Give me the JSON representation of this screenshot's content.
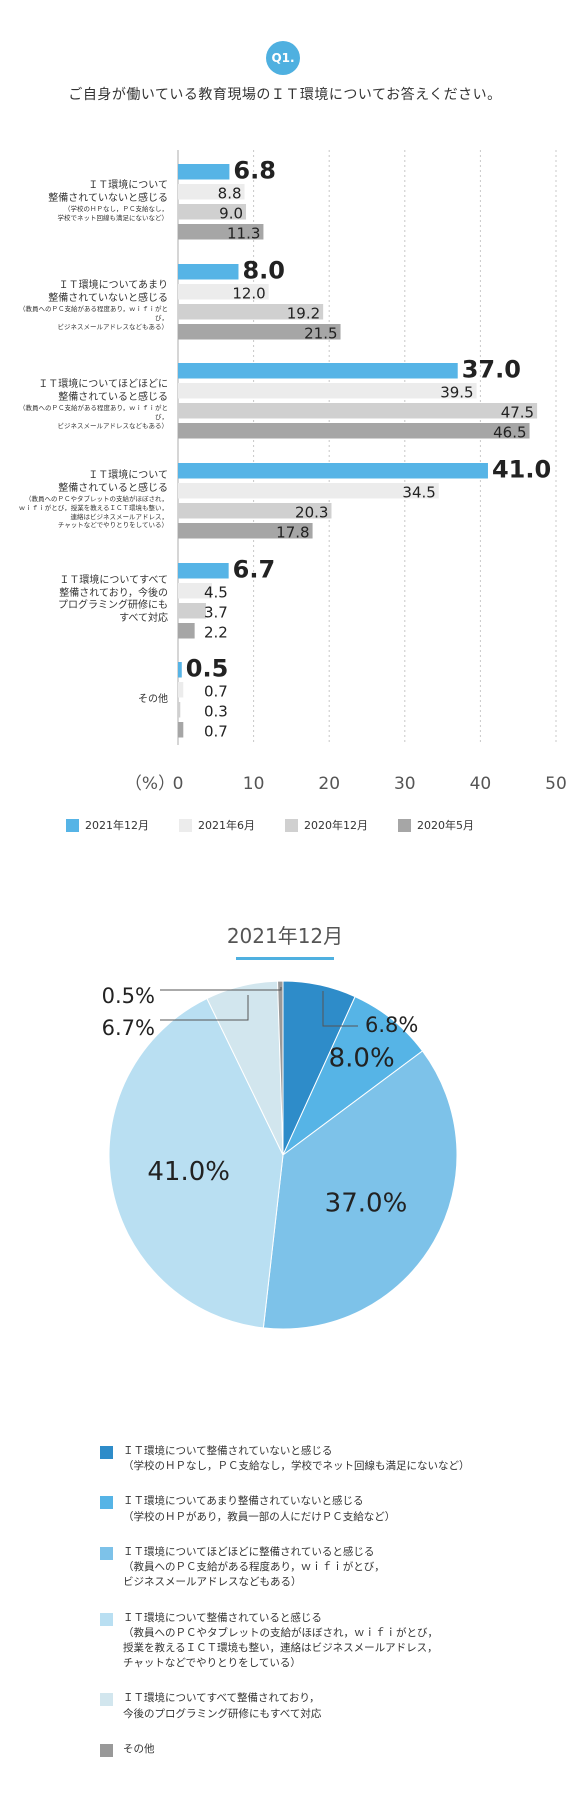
{
  "badge": "Q1.",
  "title": "ご自身が働いている教育現場のＩＴ環境についてお答えください。",
  "colors": {
    "dec2021": "#56b4e6",
    "jun2021": "#ececec",
    "dec2020": "#d0d0d0",
    "may2020": "#a6a6a6",
    "pie": [
      "#2e8cc9",
      "#56b4e6",
      "#7dc2e9",
      "#b9dff2",
      "#d2e6ee",
      "#999999"
    ]
  },
  "chart_data": [
    {
      "type": "bar",
      "orientation": "horizontal",
      "categories": [
        {
          "main": [
            "ＩＴ環境について",
            "整備されていないと感じる"
          ],
          "sub": [
            "（学校のＨＰなし，ＰＣ支給なし，",
            "学校でネット回線も満足にないなど）"
          ]
        },
        {
          "main": [
            "ＩＴ環境についてあまり",
            "整備されていないと感じる"
          ],
          "sub": [
            "（教員へのＰＣ支給がある程度あり，ｗｉｆｉがとび，",
            "ビジネスメールアドレスなどもある）"
          ]
        },
        {
          "main": [
            "ＩＴ環境についてほどほどに",
            "整備されていると感じる"
          ],
          "sub": [
            "（教員へのＰＣ支給がある程度あり，ｗｉｆｉがとび，",
            "ビジネスメールアドレスなどもある）"
          ]
        },
        {
          "main": [
            "ＩＴ環境について",
            "整備されていると感じる"
          ],
          "sub": [
            "（教員へのＰＣやタブレットの支給がほぼされ，",
            "ｗｉｆｉがとび，授業を教えるＩＣＴ環境も整い，",
            "連絡はビジネスメールアドレス，",
            "チャットなどでやりとりをしている）"
          ]
        },
        {
          "main": [
            "ＩＴ環境についてすべて",
            "整備されており，今後の",
            "プログラミング研修にも",
            "すべて対応"
          ],
          "sub": []
        },
        {
          "main": [
            "その他"
          ],
          "sub": []
        }
      ],
      "series": [
        {
          "name": "2021年12月",
          "values": [
            6.8,
            8.0,
            37.0,
            41.0,
            6.7,
            0.5
          ]
        },
        {
          "name": "2021年6月",
          "values": [
            8.8,
            12.0,
            39.5,
            34.5,
            4.5,
            0.7
          ]
        },
        {
          "name": "2020年12月",
          "values": [
            9.0,
            19.2,
            47.5,
            20.3,
            3.7,
            0.3
          ]
        },
        {
          "name": "2020年5月",
          "values": [
            11.3,
            21.5,
            46.5,
            17.8,
            2.2,
            0.7
          ]
        }
      ],
      "value_labels": [
        [
          "6.8",
          "8.8",
          "9.0",
          "11.3"
        ],
        [
          "8.0",
          "12.0",
          "19.2",
          "21.5"
        ],
        [
          "37.0",
          "39.5",
          "47.5",
          "46.5"
        ],
        [
          "41.0",
          "34.5",
          "20.3",
          "17.8"
        ],
        [
          "6.7",
          "4.5",
          "3.7",
          "2.2"
        ],
        [
          "0.5",
          "0.7",
          "0.3",
          "0.7"
        ]
      ],
      "xlim": [
        0,
        50
      ],
      "xticks": [
        "0",
        "10",
        "20",
        "30",
        "40",
        "50"
      ],
      "xunit": "（%）",
      "grid": true,
      "legend": [
        "2021年12月",
        "2021年6月",
        "2020年12月",
        "2020年5月"
      ]
    },
    {
      "type": "pie",
      "title": "2021年12月",
      "values": [
        6.8,
        8.0,
        37.0,
        41.0,
        6.7,
        0.5
      ],
      "labels": [
        "6.8%",
        "8.0%",
        "37.0%",
        "41.0%",
        "6.7%",
        "0.5%"
      ],
      "legend": [
        {
          "main": "ＩＴ環境について整備されていないと感じる",
          "sub": [
            "（学校のＨＰなし，ＰＣ支給なし，学校でネット回線も満足にないなど）"
          ]
        },
        {
          "main": "ＩＴ環境についてあまり整備されていないと感じる",
          "sub": [
            "（学校のＨＰがあり，教員一部の人にだけＰＣ支給など）"
          ]
        },
        {
          "main": "ＩＴ環境についてほどほどに整備されていると感じる",
          "sub": [
            "（教員へのＰＣ支給がある程度あり，ｗｉｆｉがとび，",
            "ビジネスメールアドレスなどもある）"
          ]
        },
        {
          "main": "ＩＴ環境について整備されていると感じる",
          "sub": [
            "（教員へのＰＣやタブレットの支給がほぼされ，ｗｉｆｉがとび，",
            "授業を教えるＩＣＴ環境も整い，連絡はビジネスメールアドレス，",
            "チャットなどでやりとりをしている）"
          ]
        },
        {
          "main": "ＩＴ環境についてすべて整備されており，",
          "sub": [
            "今後のプログラミング研修にもすべて対応"
          ]
        },
        {
          "main": "その他",
          "sub": []
        }
      ]
    }
  ]
}
